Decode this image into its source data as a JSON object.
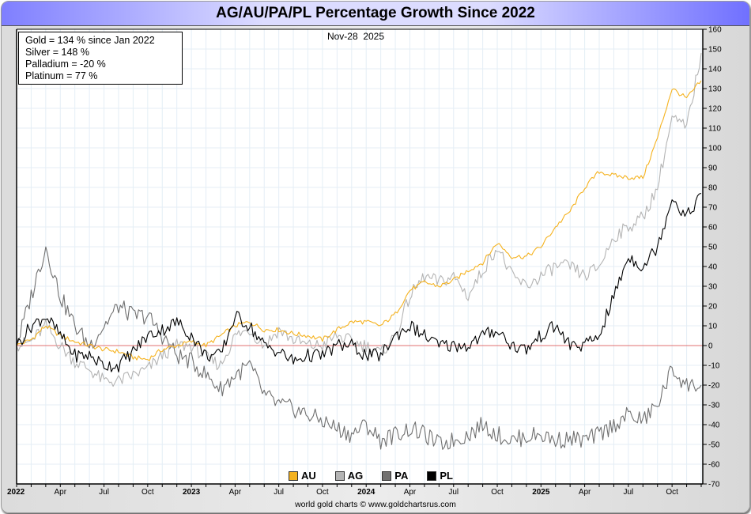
{
  "chart_data": {
    "type": "line",
    "title": "AG/AU/PA/PL Percentage Growth Since 2022",
    "date_label": "Nov-28  2025",
    "info_lines": [
      "Gold = 134 % since Jan 2022",
      "Silver = 148 %",
      "Palladium = -20 %",
      "Platinum = 77 %"
    ],
    "credit": "world gold charts © www.goldchartsrus.com",
    "ylim": [
      -70,
      160
    ],
    "yticks": [
      160,
      150,
      140,
      130,
      120,
      110,
      100,
      90,
      80,
      70,
      60,
      50,
      40,
      30,
      20,
      10,
      0,
      -10,
      -20,
      -30,
      -40,
      -50,
      -60,
      -70
    ],
    "xlim_months": [
      0,
      47
    ],
    "xticks": [
      {
        "label": "2022",
        "month": 0,
        "year": true
      },
      {
        "label": "Apr",
        "month": 3,
        "year": false
      },
      {
        "label": "Jul",
        "month": 6,
        "year": false
      },
      {
        "label": "Oct",
        "month": 9,
        "year": false
      },
      {
        "label": "2023",
        "month": 12,
        "year": true
      },
      {
        "label": "Apr",
        "month": 15,
        "year": false
      },
      {
        "label": "Jul",
        "month": 18,
        "year": false
      },
      {
        "label": "Oct",
        "month": 21,
        "year": false
      },
      {
        "label": "2024",
        "month": 24,
        "year": true
      },
      {
        "label": "Apr",
        "month": 27,
        "year": false
      },
      {
        "label": "Jul",
        "month": 30,
        "year": false
      },
      {
        "label": "Oct",
        "month": 33,
        "year": false
      },
      {
        "label": "2025",
        "month": 36,
        "year": true
      },
      {
        "label": "Apr",
        "month": 39,
        "year": false
      },
      {
        "label": "Jul",
        "month": 42,
        "year": false
      },
      {
        "label": "Oct",
        "month": 45,
        "year": false
      }
    ],
    "baseline": 0,
    "legend_position": "bottom-center",
    "colors": {
      "AU": "#f5b21e",
      "AG": "#b4b4b4",
      "PA": "#707070",
      "PL": "#000000",
      "baseline": "#e07070",
      "grid": "#e4eef6"
    },
    "series": [
      {
        "name": "AU",
        "values": [
          0,
          3,
          10,
          5,
          2,
          0,
          -2,
          -3,
          -6,
          -7,
          -2,
          0,
          2,
          0,
          5,
          10,
          12,
          8,
          8,
          6,
          5,
          3,
          8,
          12,
          12,
          10,
          16,
          28,
          32,
          30,
          33,
          38,
          42,
          52,
          45,
          45,
          50,
          60,
          68,
          80,
          88,
          86,
          85,
          85,
          105,
          130,
          125,
          134
        ]
      },
      {
        "name": "AG",
        "values": [
          0,
          2,
          10,
          0,
          -8,
          -12,
          -18,
          -18,
          -15,
          -12,
          -5,
          0,
          0,
          -6,
          -10,
          5,
          8,
          0,
          8,
          3,
          0,
          0,
          5,
          2,
          0,
          -4,
          5,
          25,
          35,
          32,
          35,
          25,
          38,
          50,
          35,
          30,
          35,
          40,
          40,
          35,
          40,
          55,
          60,
          65,
          80,
          115,
          110,
          148
        ]
      },
      {
        "name": "PA",
        "values": [
          0,
          25,
          50,
          25,
          10,
          0,
          10,
          20,
          15,
          15,
          5,
          -5,
          -8,
          -15,
          -22,
          -15,
          -10,
          -25,
          -30,
          -32,
          -35,
          -38,
          -42,
          -45,
          -40,
          -48,
          -45,
          -42,
          -45,
          -50,
          -48,
          -45,
          -40,
          -45,
          -48,
          -46,
          -45,
          -48,
          -47,
          -48,
          -45,
          -40,
          -35,
          -38,
          -30,
          -12,
          -20,
          -20
        ]
      },
      {
        "name": "PL",
        "values": [
          0,
          10,
          15,
          5,
          -5,
          -5,
          -10,
          -10,
          -3,
          5,
          8,
          12,
          5,
          -5,
          -5,
          15,
          10,
          0,
          -3,
          -8,
          -5,
          -5,
          0,
          0,
          -5,
          -5,
          5,
          10,
          5,
          0,
          0,
          0,
          5,
          8,
          0,
          -2,
          5,
          10,
          0,
          0,
          5,
          25,
          45,
          40,
          50,
          75,
          65,
          77
        ]
      }
    ]
  }
}
